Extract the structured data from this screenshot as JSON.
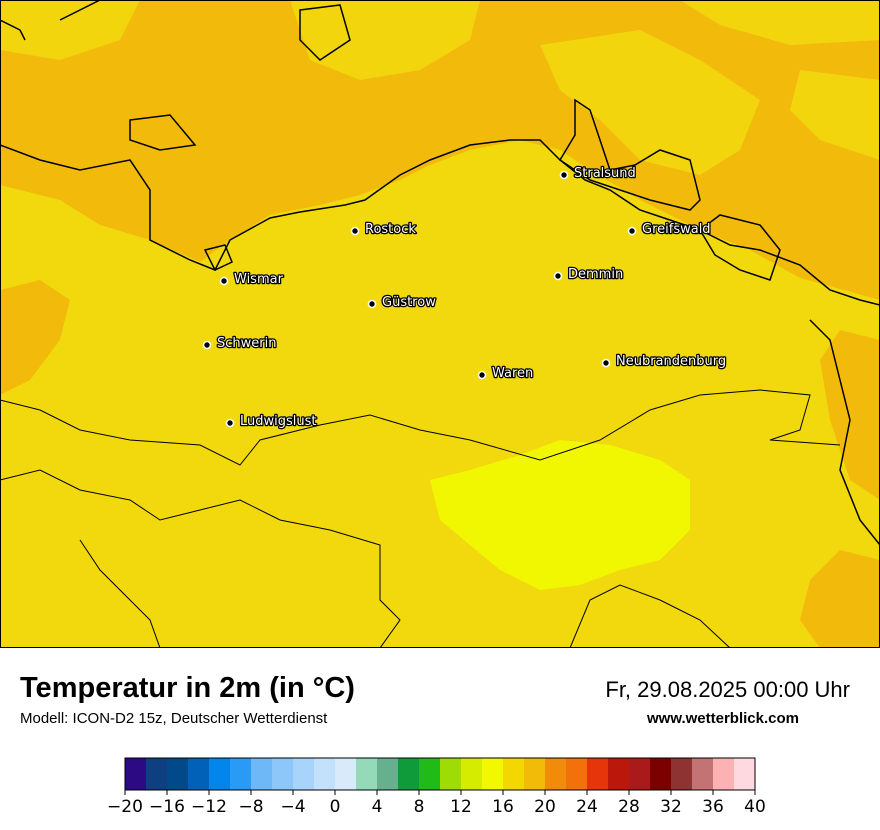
{
  "title": "Temperatur in 2m (in °C)",
  "model": "Modell: ICON-D2 15z, Deutscher Wetterdienst",
  "datetime": "Fr, 29.08.2025 00:00 Uhr",
  "website": "www.wetterblick.com",
  "cities": [
    {
      "name": "Stralsund"
    },
    {
      "name": "Rostock"
    },
    {
      "name": "Greifswald"
    },
    {
      "name": "Wismar"
    },
    {
      "name": "Demmin"
    },
    {
      "name": "Güstrow"
    },
    {
      "name": "Schwerin"
    },
    {
      "name": "Neubrandenburg"
    },
    {
      "name": "Waren"
    },
    {
      "name": "Ludwigslust"
    }
  ],
  "legend": {
    "unit": "°C",
    "min": -20,
    "max": 40,
    "step": 2,
    "colors": [
      "#2c0a83",
      "#0d3f81",
      "#02498a",
      "#0160b8",
      "#0386ec",
      "#299bf7",
      "#6fb8f7",
      "#8dc6f8",
      "#a8d3fa",
      "#c4e1fb",
      "#d9ebfb",
      "#94d9b8",
      "#66b08f",
      "#109b3a",
      "#21bb18",
      "#9fdb04",
      "#d5ec01",
      "#f1f800",
      "#f2d800",
      "#f2bb08",
      "#f18b09",
      "#f2710b",
      "#e7350b",
      "#bb180b",
      "#aa1a1a",
      "#7b0000",
      "#8e3232",
      "#c37373",
      "#fcb2b2",
      "#fed9df"
    ],
    "tick_labels": [
      "−20",
      "−16",
      "−12",
      "−8",
      "−4",
      "0",
      "4",
      "8",
      "12",
      "16",
      "20",
      "24",
      "28",
      "32",
      "36",
      "40"
    ]
  }
}
